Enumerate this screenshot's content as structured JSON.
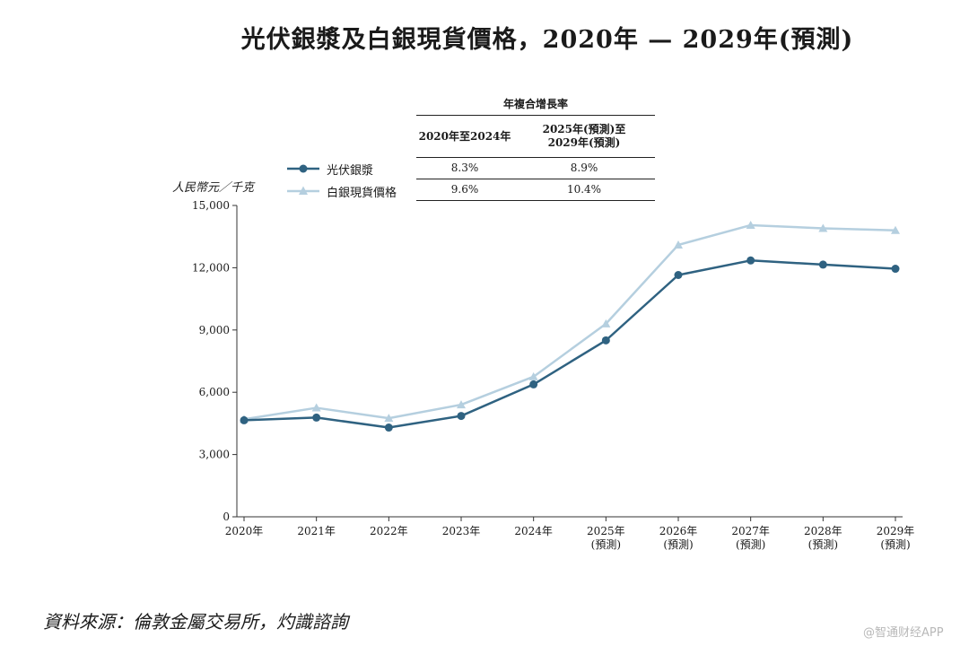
{
  "chart_data": {
    "type": "line",
    "title": "光伏銀漿及白銀現貨價格，2020年 — 2029年(預測)",
    "ylabel": "人民幣元／千克",
    "ylim": [
      0,
      15000
    ],
    "yticks": [
      "0",
      "3,000",
      "6,000",
      "9,000",
      "12,000",
      "15,000"
    ],
    "ytick_values": [
      0,
      3000,
      6000,
      9000,
      12000,
      15000
    ],
    "categories": [
      [
        "2020年"
      ],
      [
        "2021年"
      ],
      [
        "2022年"
      ],
      [
        "2023年"
      ],
      [
        "2024年"
      ],
      [
        "2025年",
        "(預測)"
      ],
      [
        "2026年",
        "(預測)"
      ],
      [
        "2027年",
        "(預測)"
      ],
      [
        "2028年",
        "(預測)"
      ],
      [
        "2029年",
        "(預測)"
      ]
    ],
    "series": [
      {
        "name": "光伏銀漿",
        "color": "#2f6281",
        "marker": "circle",
        "values": [
          4650,
          4780,
          4300,
          4860,
          6380,
          8500,
          11650,
          12350,
          12150,
          11950
        ]
      },
      {
        "name": "白銀現貨價格",
        "color": "#b5cfdf",
        "marker": "triangle",
        "values": [
          4700,
          5250,
          4750,
          5400,
          6750,
          9300,
          13100,
          14050,
          13900,
          13800
        ]
      }
    ],
    "grid": false,
    "legend": "top-left"
  },
  "cagr_table": {
    "header": "年複合增長率",
    "col1": "2020年至2024年",
    "col2_line1": "2025年(預測)至",
    "col2_line2": "2029年(預測)",
    "rows": [
      {
        "v1": "8.3%",
        "v2": "8.9%"
      },
      {
        "v1": "9.6%",
        "v2": "10.4%"
      }
    ]
  },
  "source": "資料來源：倫敦金屬交易所，灼識諮詢",
  "watermark": "@智通财经APP"
}
